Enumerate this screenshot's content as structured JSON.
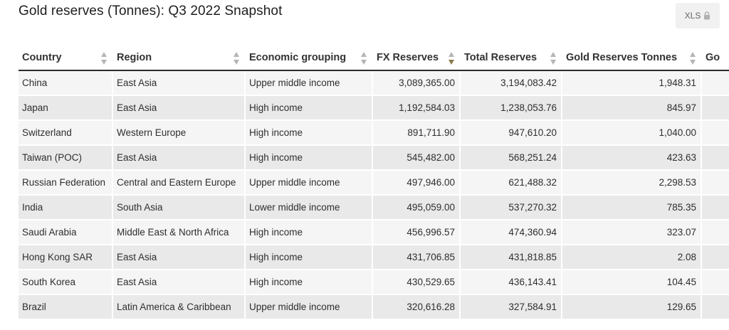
{
  "page": {
    "title": "Gold reserves (Tonnes): Q3 2022 Snapshot",
    "export_label": "XLS",
    "export_icon": "lock-icon",
    "accent_color": "#8a7a4a"
  },
  "table": {
    "columns": [
      {
        "label": "Country"
      },
      {
        "label": "Region"
      },
      {
        "label": "Economic grouping"
      },
      {
        "label": "FX Reserves",
        "sorted": "descending"
      },
      {
        "label": "Total Reserves"
      },
      {
        "label": "Gold Reserves Tonnes"
      },
      {
        "label": "Go"
      }
    ],
    "rows": [
      {
        "country": "China",
        "region": "East Asia",
        "grouping": "Upper middle income",
        "fx": "3,089,365.00",
        "total": "3,194,083.42",
        "gold": "1,948.31"
      },
      {
        "country": "Japan",
        "region": "East Asia",
        "grouping": "High income",
        "fx": "1,192,584.03",
        "total": "1,238,053.76",
        "gold": "845.97"
      },
      {
        "country": "Switzerland",
        "region": "Western Europe",
        "grouping": "High income",
        "fx": "891,711.90",
        "total": "947,610.20",
        "gold": "1,040.00"
      },
      {
        "country": "Taiwan (POC)",
        "region": "East Asia",
        "grouping": "High income",
        "fx": "545,482.00",
        "total": "568,251.24",
        "gold": "423.63"
      },
      {
        "country": "Russian Federation",
        "region": "Central and Eastern Europe",
        "grouping": "Upper middle income",
        "fx": "497,946.00",
        "total": "621,488.32",
        "gold": "2,298.53"
      },
      {
        "country": "India",
        "region": "South Asia",
        "grouping": "Lower middle income",
        "fx": "495,059.00",
        "total": "537,270.32",
        "gold": "785.35"
      },
      {
        "country": "Saudi Arabia",
        "region": "Middle East & North Africa",
        "grouping": "High income",
        "fx": "456,996.57",
        "total": "474,360.94",
        "gold": "323.07"
      },
      {
        "country": "Hong Kong SAR",
        "region": "East Asia",
        "grouping": "High income",
        "fx": "431,706.85",
        "total": "431,818.85",
        "gold": "2.08"
      },
      {
        "country": "South Korea",
        "region": "East Asia",
        "grouping": "High income",
        "fx": "430,529.65",
        "total": "436,143.41",
        "gold": "104.45"
      },
      {
        "country": "Brazil",
        "region": "Latin America & Caribbean",
        "grouping": "Upper middle income",
        "fx": "320,616.28",
        "total": "327,584.91",
        "gold": "129.65"
      }
    ]
  }
}
